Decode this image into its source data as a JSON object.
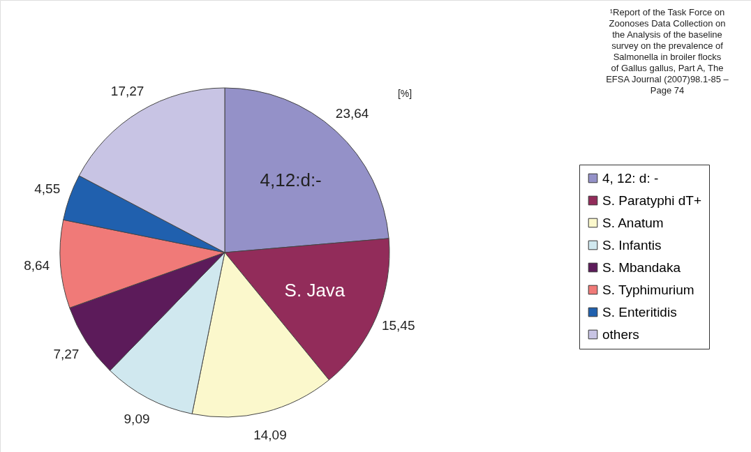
{
  "chart_data": {
    "type": "pie",
    "categories": [
      "4, 12: d: -",
      "S. Paratyphi dT+",
      "S. Anatum",
      "S. Infantis",
      "S. Mbandaka",
      "S. Typhimurium",
      "S. Enteritidis",
      "others"
    ],
    "values": [
      23.64,
      15.45,
      14.09,
      9.09,
      7.27,
      8.64,
      4.55,
      17.27
    ],
    "value_labels": [
      "23,64",
      "15,45",
      "14,09",
      "9,09",
      "7,27",
      "8,64",
      "4,55",
      "17,27"
    ],
    "colors": [
      "#9491c8",
      "#922c5a",
      "#fbf8cc",
      "#d0e8ef",
      "#5c1b5a",
      "#f07a78",
      "#2060ae",
      "#c8c4e4"
    ],
    "legend": "right",
    "annotations": [
      "[%]",
      "¹Report of the Task Force on Zoonoses Data Collection on the Analysis of the baseline survey on the prevalence of Salmonella in broiler flocks of Gallus gallus, Part A, The EFSA Journal (2007)98.1-85 – Page 74",
      {
        "text": "4,12:d:-",
        "x": "4, 12: d: -"
      },
      {
        "text": "S. Java",
        "x": "S. Paratyphi dT+"
      }
    ]
  }
}
